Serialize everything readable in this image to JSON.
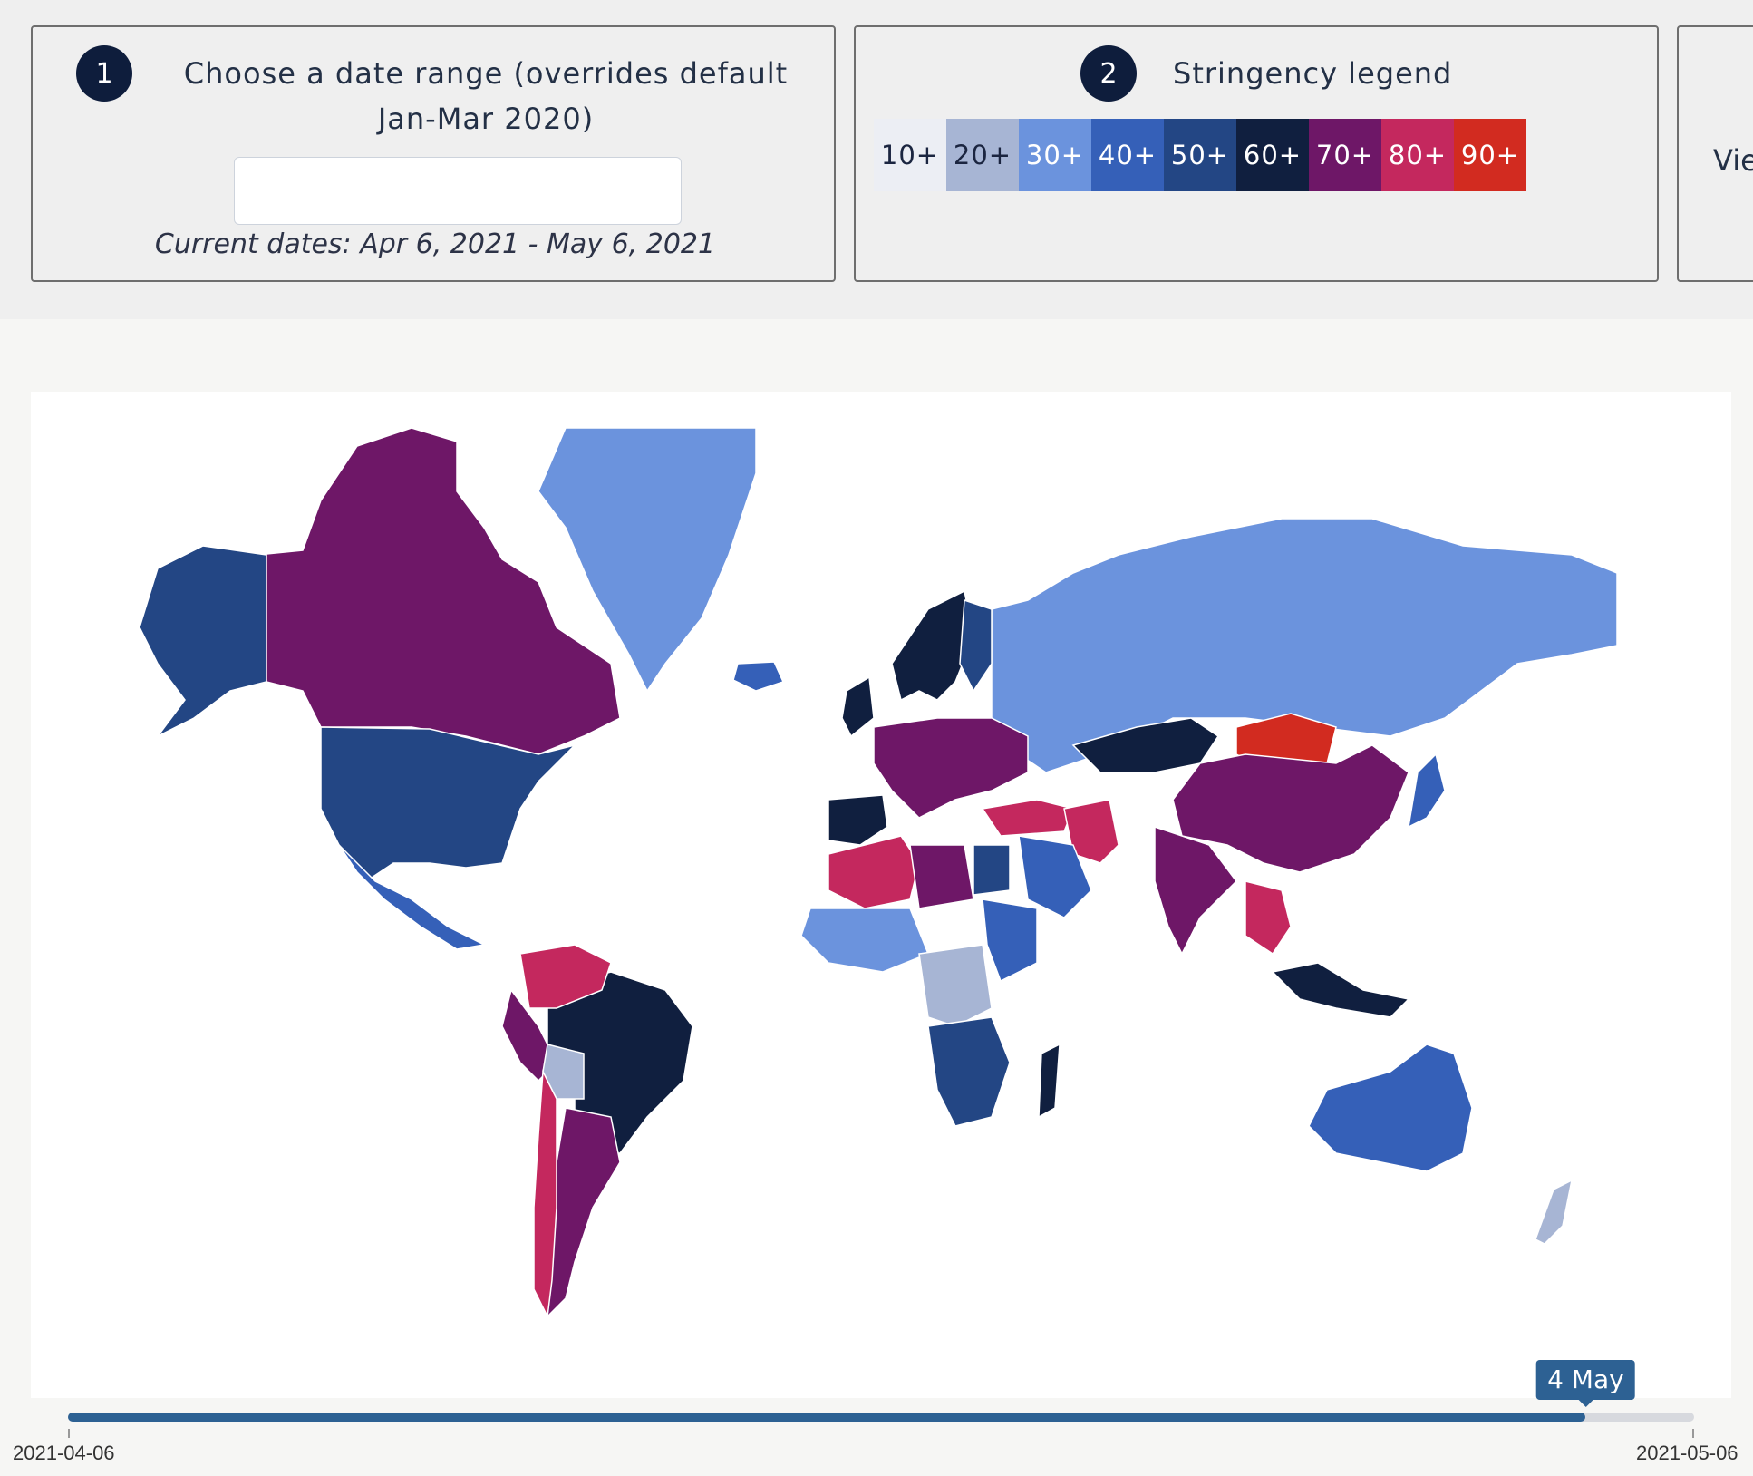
{
  "step1": {
    "number": "1",
    "title": "Choose a date range (overrides default Jan-Mar 2020)",
    "input_value": "",
    "current_dates": "Current dates: Apr 6, 2021 - May 6, 2021"
  },
  "step2": {
    "number": "2",
    "title": "Stringency legend",
    "legend": [
      {
        "label": "10+",
        "bg": "#eceef4",
        "fg": "#1b2540"
      },
      {
        "label": "20+",
        "bg": "#a7b5d4",
        "fg": "#1b2540"
      },
      {
        "label": "30+",
        "bg": "#6b93dd",
        "fg": "#ffffff"
      },
      {
        "label": "40+",
        "bg": "#3560b8",
        "fg": "#ffffff"
      },
      {
        "label": "50+",
        "bg": "#234684",
        "fg": "#ffffff"
      },
      {
        "label": "60+",
        "bg": "#101f3f",
        "fg": "#ffffff"
      },
      {
        "label": "70+",
        "bg": "#6e1767",
        "fg": "#ffffff"
      },
      {
        "label": "80+",
        "bg": "#c4285e",
        "fg": "#ffffff"
      },
      {
        "label": "90+",
        "bg": "#d22b20",
        "fg": "#ffffff"
      }
    ]
  },
  "step3": {
    "label": "Vie"
  },
  "slider": {
    "handle_label": "4 May",
    "start_label": "2021-04-06",
    "end_label": "2021-05-06",
    "start_date": "2021-04-06",
    "end_date": "2021-05-06",
    "current_date": "2021-05-04"
  },
  "map": {
    "countries": [
      {
        "name": "canada",
        "level": "70+"
      },
      {
        "name": "alaska",
        "level": "50+"
      },
      {
        "name": "united-states",
        "level": "50+"
      },
      {
        "name": "mexico",
        "level": "40+"
      },
      {
        "name": "greenland",
        "level": "30+"
      },
      {
        "name": "iceland",
        "level": "40+"
      },
      {
        "name": "brazil",
        "level": "60+"
      },
      {
        "name": "venezuela-colombia",
        "level": "80+"
      },
      {
        "name": "peru",
        "level": "70+"
      },
      {
        "name": "bolivia",
        "level": "20+"
      },
      {
        "name": "argentina",
        "level": "70+"
      },
      {
        "name": "chile",
        "level": "80+"
      },
      {
        "name": "russia",
        "level": "30+"
      },
      {
        "name": "scandinavia",
        "level": "60+"
      },
      {
        "name": "finland",
        "level": "50+"
      },
      {
        "name": "europe",
        "level": "70+"
      },
      {
        "name": "united-kingdom",
        "level": "60+"
      },
      {
        "name": "iberia",
        "level": "60+"
      },
      {
        "name": "turkey",
        "level": "80+"
      },
      {
        "name": "kazakhstan",
        "level": "60+"
      },
      {
        "name": "mongolia",
        "level": "90+"
      },
      {
        "name": "china",
        "level": "70+"
      },
      {
        "name": "india",
        "level": "70+"
      },
      {
        "name": "iran",
        "level": "80+"
      },
      {
        "name": "saudi-arabia",
        "level": "40+"
      },
      {
        "name": "north-africa-west",
        "level": "80+"
      },
      {
        "name": "libya",
        "level": "70+"
      },
      {
        "name": "egypt",
        "level": "50+"
      },
      {
        "name": "west-africa",
        "level": "30+"
      },
      {
        "name": "central-africa",
        "level": "20+"
      },
      {
        "name": "east-africa",
        "level": "40+"
      },
      {
        "name": "southern-africa",
        "level": "50+"
      },
      {
        "name": "madagascar",
        "level": "60+"
      },
      {
        "name": "southeast-asia",
        "level": "80+"
      },
      {
        "name": "indonesia",
        "level": "60+"
      },
      {
        "name": "japan",
        "level": "40+"
      },
      {
        "name": "australia",
        "level": "40+"
      },
      {
        "name": "new-zealand",
        "level": "20+"
      }
    ]
  }
}
